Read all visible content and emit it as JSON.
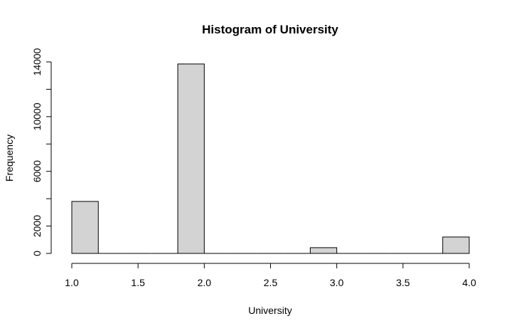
{
  "chart_data": {
    "type": "bar",
    "title": "Histogram of University",
    "xlabel": "University",
    "ylabel": "Frequency",
    "bins": [
      {
        "start": 1.0,
        "end": 1.2,
        "count": 3800
      },
      {
        "start": 1.2,
        "end": 1.4,
        "count": 0
      },
      {
        "start": 1.4,
        "end": 1.6,
        "count": 0
      },
      {
        "start": 1.6,
        "end": 1.8,
        "count": 0
      },
      {
        "start": 1.8,
        "end": 2.0,
        "count": 13850
      },
      {
        "start": 2.0,
        "end": 2.2,
        "count": 0
      },
      {
        "start": 2.2,
        "end": 2.4,
        "count": 0
      },
      {
        "start": 2.4,
        "end": 2.6,
        "count": 0
      },
      {
        "start": 2.6,
        "end": 2.8,
        "count": 0
      },
      {
        "start": 2.8,
        "end": 3.0,
        "count": 420
      },
      {
        "start": 3.0,
        "end": 3.2,
        "count": 0
      },
      {
        "start": 3.2,
        "end": 3.4,
        "count": 0
      },
      {
        "start": 3.4,
        "end": 3.6,
        "count": 0
      },
      {
        "start": 3.6,
        "end": 3.8,
        "count": 0
      },
      {
        "start": 3.8,
        "end": 4.0,
        "count": 1200
      }
    ],
    "xlim": [
      1.0,
      4.0
    ],
    "ylim": [
      0,
      14000
    ],
    "x_ticks": [
      "1.0",
      "1.5",
      "2.0",
      "2.5",
      "3.0",
      "3.5",
      "4.0"
    ],
    "y_ticks": [
      "0",
      "2000",
      "6000",
      "10000",
      "14000"
    ],
    "grid": false,
    "bar_color": "#d3d3d3",
    "border_color": "#000000"
  }
}
